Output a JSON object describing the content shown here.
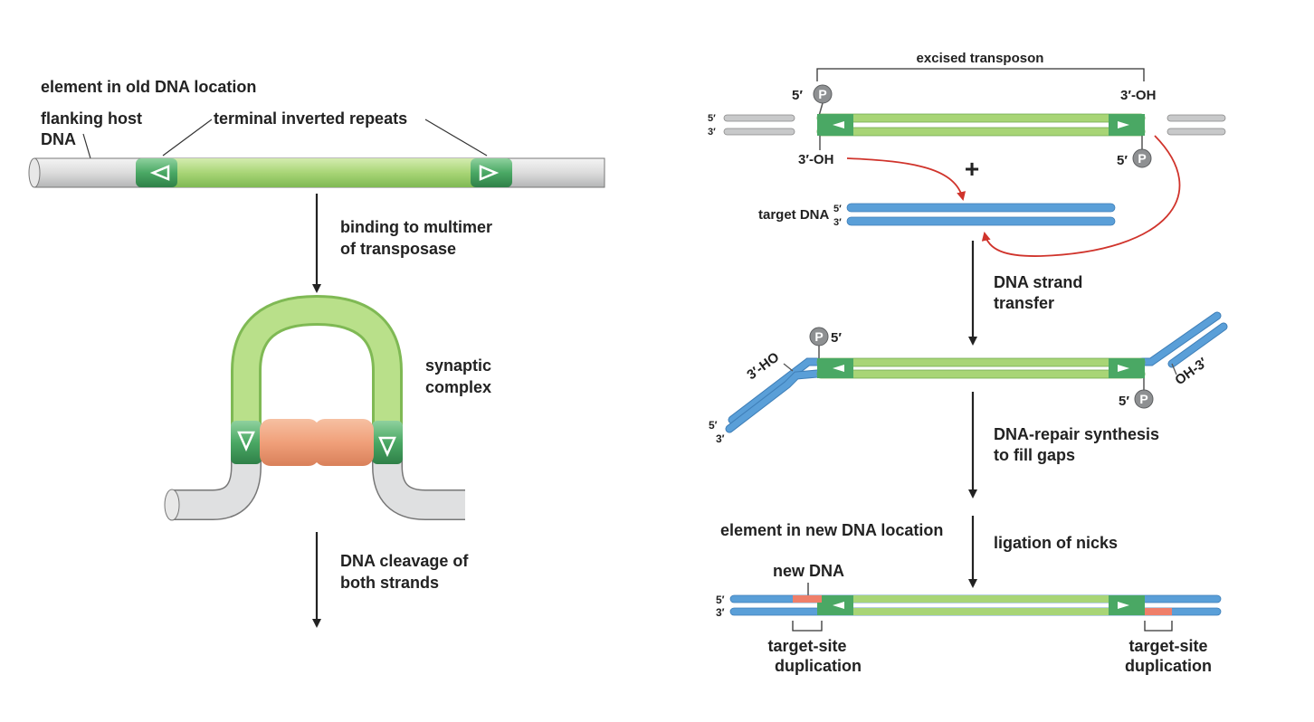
{
  "left_panel": {
    "title": "element in old DNA location",
    "flanking_line1": "flanking host",
    "flanking_line2": "DNA",
    "repeats": "terminal inverted repeats",
    "step1_line1": "binding to multimer",
    "step1_line2": "of transposase",
    "synaptic_line1": "synaptic",
    "synaptic_line2": "complex",
    "step2_line1": "DNA cleavage of",
    "step2_line2": "both strands"
  },
  "right_panel": {
    "excised": "excised transposon",
    "five_prime": "5′",
    "three_prime": "3′",
    "three_oh": "3′-OH",
    "p": "P",
    "plus": "+",
    "target_dna": "target DNA",
    "step3_line1": "DNA strand",
    "step3_line2": "transfer",
    "three_ho": "3′-HO",
    "oh_three": "OH-3′",
    "step4_line1": "DNA-repair synthesis",
    "step4_line2": "to fill gaps",
    "new_location": "element in new DNA location",
    "step5": "ligation of nicks",
    "new_dna": "new DNA",
    "tsd_line1": "target-site",
    "tsd_line2": "duplication"
  },
  "colors": {
    "host_gray": "#d9dadb",
    "transposon_green": "#a8d576",
    "repeat_green": "#4aa864",
    "target_blue": "#5a9fd8",
    "transposase_orange": "#f0a07a",
    "new_dna_red": "#ef7f6a",
    "arrow_red": "#d0342c",
    "phosphate_gray": "#8e9092"
  }
}
